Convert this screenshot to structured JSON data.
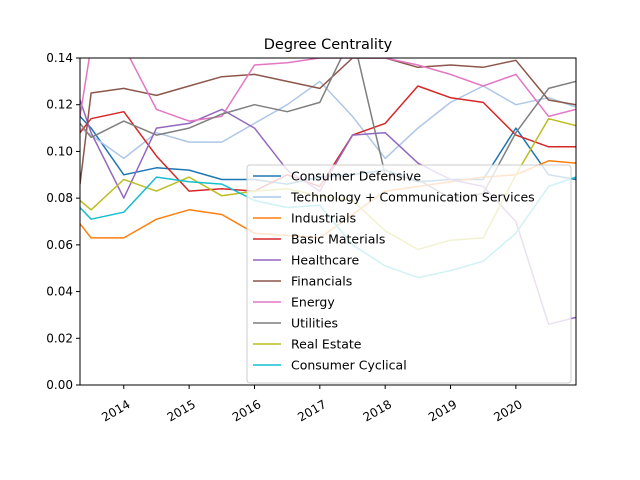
{
  "chart_data": {
    "type": "line",
    "title": "Degree Centrality",
    "xlabel": "",
    "ylabel": "",
    "xlim": [
      2013.33,
      2020.92
    ],
    "ylim": [
      0,
      0.14
    ],
    "grid": false,
    "legend_position": "center-right",
    "x_ticks": [
      "2014",
      "2015",
      "2016",
      "2017",
      "2018",
      "2019",
      "2020"
    ],
    "y_ticks": [
      "0.00",
      "0.02",
      "0.04",
      "0.06",
      "0.08",
      "0.10",
      "0.12",
      "0.14"
    ],
    "x": [
      2013.33,
      2013.5,
      2014.0,
      2014.5,
      2015.0,
      2015.5,
      2016.0,
      2016.5,
      2017.0,
      2017.5,
      2018.0,
      2018.5,
      2019.0,
      2019.5,
      2020.0,
      2020.5,
      2020.92
    ],
    "series": [
      {
        "name": "Consumer Defensive",
        "color": "#1f77b4",
        "values": [
          0.115,
          0.11,
          0.09,
          0.093,
          0.092,
          0.088,
          0.088,
          0.086,
          0.089,
          0.09,
          0.092,
          0.087,
          0.088,
          0.088,
          0.11,
          0.09,
          0.088
        ]
      },
      {
        "name": "Technology + Communication Services",
        "color": "#aec7e8",
        "values": [
          0.11,
          0.107,
          0.097,
          0.108,
          0.104,
          0.104,
          0.112,
          0.12,
          0.13,
          0.115,
          0.097,
          0.11,
          0.121,
          0.128,
          0.12,
          0.123,
          0.119
        ]
      },
      {
        "name": "Industrials",
        "color": "#ff7f0e",
        "values": [
          0.069,
          0.063,
          0.063,
          0.071,
          0.075,
          0.073,
          0.065,
          0.064,
          0.063,
          0.073,
          0.083,
          0.085,
          0.087,
          0.089,
          0.09,
          0.096,
          0.095
        ]
      },
      {
        "name": "Basic Materials",
        "color": "#d62728",
        "values": [
          0.108,
          0.114,
          0.117,
          0.098,
          0.083,
          0.084,
          0.083,
          0.09,
          0.085,
          0.107,
          0.112,
          0.128,
          0.123,
          0.121,
          0.107,
          0.102,
          0.102
        ]
      },
      {
        "name": "Healthcare",
        "color": "#9467bd",
        "values": [
          0.122,
          0.108,
          0.08,
          0.11,
          0.112,
          0.118,
          0.11,
          0.092,
          0.083,
          0.107,
          0.108,
          0.095,
          0.088,
          0.085,
          0.07,
          0.026,
          0.029
        ]
      },
      {
        "name": "Financials",
        "color": "#8c564b",
        "values": [
          0.086,
          0.125,
          0.127,
          0.124,
          0.128,
          0.132,
          0.133,
          0.13,
          0.127,
          0.14,
          0.14,
          0.136,
          0.137,
          0.136,
          0.139,
          0.122,
          0.12
        ]
      },
      {
        "name": "Energy",
        "color": "#e377c2",
        "values": [
          0.115,
          0.145,
          0.145,
          0.118,
          0.113,
          0.115,
          0.137,
          0.138,
          0.14,
          0.14,
          0.14,
          0.137,
          0.133,
          0.128,
          0.133,
          0.115,
          0.118
        ]
      },
      {
        "name": "Utilities",
        "color": "#7f7f7f",
        "values": [
          0.112,
          0.106,
          0.113,
          0.107,
          0.11,
          0.116,
          0.12,
          0.117,
          0.121,
          0.15,
          0.09,
          0.088,
          0.08,
          0.082,
          0.108,
          0.127,
          0.13
        ]
      },
      {
        "name": "Real Estate",
        "color": "#bcbd22",
        "values": [
          0.079,
          0.075,
          0.088,
          0.083,
          0.089,
          0.081,
          0.083,
          0.084,
          0.081,
          0.079,
          0.066,
          0.058,
          0.062,
          0.063,
          0.09,
          0.114,
          0.111
        ]
      },
      {
        "name": "Consumer Cyclical",
        "color": "#17becf",
        "values": [
          0.076,
          0.071,
          0.074,
          0.089,
          0.087,
          0.086,
          0.079,
          0.076,
          0.077,
          0.06,
          0.051,
          0.046,
          0.049,
          0.053,
          0.065,
          0.085,
          0.089
        ]
      }
    ]
  }
}
